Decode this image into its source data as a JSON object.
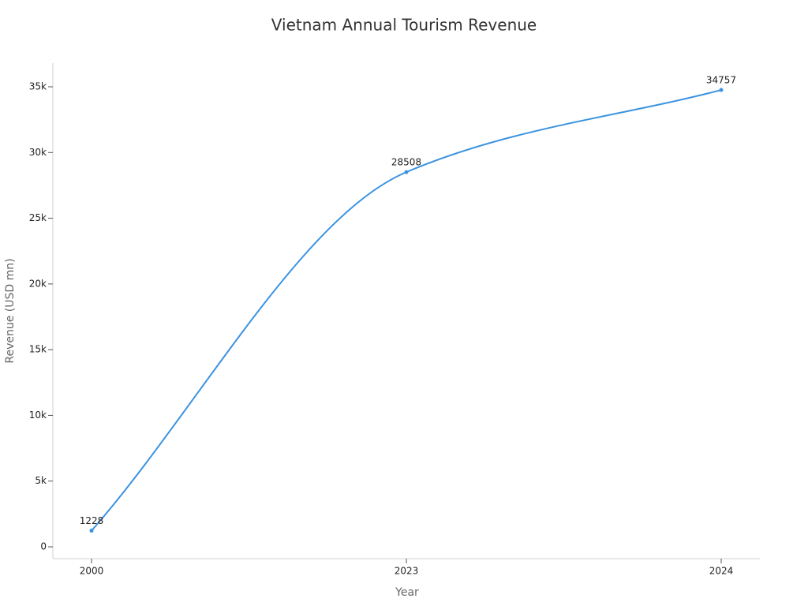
{
  "chart_data": {
    "type": "line",
    "title": "Vietnam Annual Tourism Revenue",
    "x_label": "Year",
    "y_label": "Revenue (USD mn)",
    "categories": [
      "2000",
      "2023",
      "2024"
    ],
    "series": [
      {
        "name": "Revenue",
        "color": "#3b93e0",
        "values": [
          1228,
          28508,
          34757
        ]
      }
    ],
    "ylim": [
      -900,
      36800
    ],
    "yticks": [
      0,
      {
        "value": 5000,
        "label": "5k"
      },
      {
        "value": 10000,
        "label": "10k"
      },
      {
        "value": 15000,
        "label": "15k"
      },
      {
        "value": 20000,
        "label": "20k"
      },
      {
        "value": 25000,
        "label": "25k"
      },
      {
        "value": 30000,
        "label": "30k"
      },
      {
        "value": 35000,
        "label": "35k"
      }
    ],
    "grid": false
  }
}
